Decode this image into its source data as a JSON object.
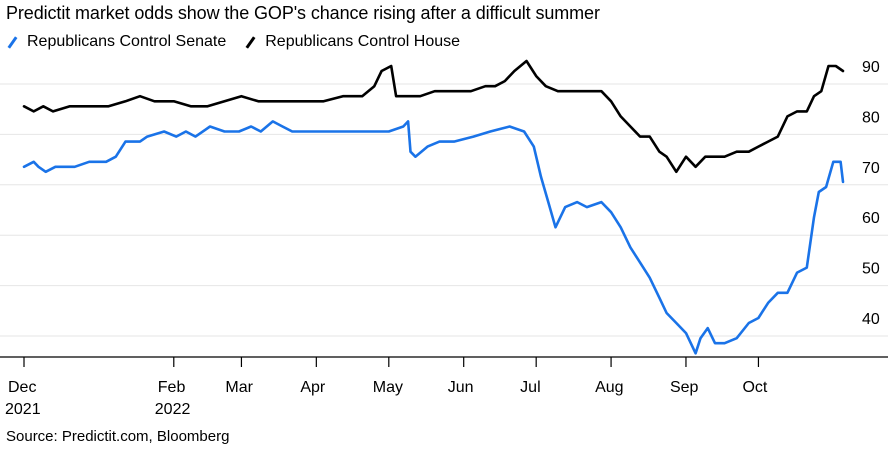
{
  "title": "Predictit market odds show the GOP's chance rising after a difficult summer",
  "source": "Source: Predictit.com, Bloomberg",
  "colors": {
    "senate": "#1a73e8",
    "house": "#000000",
    "grid": "#e6e6e6",
    "axis": "#000000"
  },
  "chart_data": {
    "type": "line",
    "title": "Predictit market odds show the GOP's chance rising after a difficult summer",
    "xlabel": "",
    "ylabel": "",
    "ylim": [
      33,
      92
    ],
    "y_ticks": [
      40,
      50,
      60,
      70,
      80,
      90
    ],
    "y_axis_side": "right",
    "grid": true,
    "legend_position": "top-left",
    "x_ticks": [
      {
        "date": "2021-12-01",
        "label": "Dec",
        "sublabel": "2021"
      },
      {
        "date": "2022-02-01",
        "label": "Feb",
        "sublabel": "2022"
      },
      {
        "date": "2022-03-01",
        "label": "Mar",
        "sublabel": ""
      },
      {
        "date": "2022-04-01",
        "label": "Apr",
        "sublabel": ""
      },
      {
        "date": "2022-05-01",
        "label": "May",
        "sublabel": ""
      },
      {
        "date": "2022-06-01",
        "label": "Jun",
        "sublabel": ""
      },
      {
        "date": "2022-07-01",
        "label": "Jul",
        "sublabel": ""
      },
      {
        "date": "2022-08-01",
        "label": "Aug",
        "sublabel": ""
      },
      {
        "date": "2022-09-01",
        "label": "Sep",
        "sublabel": ""
      },
      {
        "date": "2022-10-01",
        "label": "Oct",
        "sublabel": ""
      }
    ],
    "series": [
      {
        "name": "Republicans Control Senate",
        "color": "#1a73e8",
        "points": [
          [
            "2021-12-01",
            70
          ],
          [
            "2021-12-05",
            71
          ],
          [
            "2021-12-07",
            70
          ],
          [
            "2021-12-10",
            69
          ],
          [
            "2021-12-14",
            70
          ],
          [
            "2021-12-22",
            70
          ],
          [
            "2021-12-28",
            71
          ],
          [
            "2022-01-04",
            71
          ],
          [
            "2022-01-08",
            72
          ],
          [
            "2022-01-12",
            75
          ],
          [
            "2022-01-18",
            75
          ],
          [
            "2022-01-21",
            76
          ],
          [
            "2022-01-28",
            77
          ],
          [
            "2022-02-02",
            76
          ],
          [
            "2022-02-06",
            77
          ],
          [
            "2022-02-10",
            76
          ],
          [
            "2022-02-16",
            78
          ],
          [
            "2022-02-22",
            77
          ],
          [
            "2022-02-28",
            77
          ],
          [
            "2022-03-05",
            78
          ],
          [
            "2022-03-09",
            77
          ],
          [
            "2022-03-14",
            79
          ],
          [
            "2022-03-18",
            78
          ],
          [
            "2022-03-22",
            77
          ],
          [
            "2022-04-01",
            77
          ],
          [
            "2022-04-10",
            77
          ],
          [
            "2022-04-18",
            77
          ],
          [
            "2022-04-25",
            77
          ],
          [
            "2022-05-01",
            77
          ],
          [
            "2022-05-07",
            78
          ],
          [
            "2022-05-09",
            79
          ],
          [
            "2022-05-10",
            73
          ],
          [
            "2022-05-12",
            72
          ],
          [
            "2022-05-17",
            74
          ],
          [
            "2022-05-22",
            75
          ],
          [
            "2022-05-28",
            75
          ],
          [
            "2022-06-05",
            76
          ],
          [
            "2022-06-12",
            77
          ],
          [
            "2022-06-20",
            78
          ],
          [
            "2022-06-26",
            77
          ],
          [
            "2022-06-30",
            74
          ],
          [
            "2022-07-03",
            68
          ],
          [
            "2022-07-06",
            63
          ],
          [
            "2022-07-09",
            58
          ],
          [
            "2022-07-13",
            62
          ],
          [
            "2022-07-18",
            63
          ],
          [
            "2022-07-22",
            62
          ],
          [
            "2022-07-28",
            63
          ],
          [
            "2022-08-01",
            61
          ],
          [
            "2022-08-05",
            58
          ],
          [
            "2022-08-09",
            54
          ],
          [
            "2022-08-13",
            51
          ],
          [
            "2022-08-17",
            48
          ],
          [
            "2022-08-21",
            44
          ],
          [
            "2022-08-24",
            41
          ],
          [
            "2022-08-28",
            39
          ],
          [
            "2022-09-01",
            37
          ],
          [
            "2022-09-03",
            35
          ],
          [
            "2022-09-05",
            33
          ],
          [
            "2022-09-07",
            36
          ],
          [
            "2022-09-10",
            38
          ],
          [
            "2022-09-13",
            35
          ],
          [
            "2022-09-17",
            35
          ],
          [
            "2022-09-22",
            36
          ],
          [
            "2022-09-27",
            39
          ],
          [
            "2022-10-01",
            40
          ],
          [
            "2022-10-05",
            43
          ],
          [
            "2022-10-09",
            45
          ],
          [
            "2022-10-13",
            45
          ],
          [
            "2022-10-17",
            49
          ],
          [
            "2022-10-21",
            50
          ],
          [
            "2022-10-24",
            60
          ],
          [
            "2022-10-26",
            65
          ],
          [
            "2022-10-29",
            66
          ],
          [
            "2022-11-01",
            71
          ],
          [
            "2022-11-04",
            71
          ],
          [
            "2022-11-05",
            67
          ]
        ]
      },
      {
        "name": "Republicans Control House",
        "color": "#000000",
        "points": [
          [
            "2021-12-01",
            82
          ],
          [
            "2021-12-05",
            81
          ],
          [
            "2021-12-09",
            82
          ],
          [
            "2021-12-13",
            81
          ],
          [
            "2021-12-20",
            82
          ],
          [
            "2021-12-28",
            82
          ],
          [
            "2022-01-05",
            82
          ],
          [
            "2022-01-12",
            83
          ],
          [
            "2022-01-18",
            84
          ],
          [
            "2022-01-24",
            83
          ],
          [
            "2022-02-01",
            83
          ],
          [
            "2022-02-08",
            82
          ],
          [
            "2022-02-15",
            82
          ],
          [
            "2022-02-22",
            83
          ],
          [
            "2022-03-01",
            84
          ],
          [
            "2022-03-08",
            83
          ],
          [
            "2022-03-15",
            83
          ],
          [
            "2022-03-25",
            83
          ],
          [
            "2022-04-04",
            83
          ],
          [
            "2022-04-12",
            84
          ],
          [
            "2022-04-20",
            84
          ],
          [
            "2022-04-25",
            86
          ],
          [
            "2022-04-28",
            89
          ],
          [
            "2022-05-02",
            90
          ],
          [
            "2022-05-04",
            84
          ],
          [
            "2022-05-08",
            84
          ],
          [
            "2022-05-14",
            84
          ],
          [
            "2022-05-20",
            85
          ],
          [
            "2022-05-27",
            85
          ],
          [
            "2022-06-04",
            85
          ],
          [
            "2022-06-10",
            86
          ],
          [
            "2022-06-14",
            86
          ],
          [
            "2022-06-18",
            87
          ],
          [
            "2022-06-22",
            89
          ],
          [
            "2022-06-27",
            91
          ],
          [
            "2022-07-01",
            88
          ],
          [
            "2022-07-05",
            86
          ],
          [
            "2022-07-10",
            85
          ],
          [
            "2022-07-16",
            85
          ],
          [
            "2022-07-22",
            85
          ],
          [
            "2022-07-28",
            85
          ],
          [
            "2022-08-01",
            83
          ],
          [
            "2022-08-05",
            80
          ],
          [
            "2022-08-09",
            78
          ],
          [
            "2022-08-13",
            76
          ],
          [
            "2022-08-17",
            76
          ],
          [
            "2022-08-21",
            73
          ],
          [
            "2022-08-24",
            72
          ],
          [
            "2022-08-28",
            69
          ],
          [
            "2022-09-01",
            72
          ],
          [
            "2022-09-05",
            70
          ],
          [
            "2022-09-09",
            72
          ],
          [
            "2022-09-13",
            72
          ],
          [
            "2022-09-17",
            72
          ],
          [
            "2022-09-22",
            73
          ],
          [
            "2022-09-27",
            73
          ],
          [
            "2022-10-01",
            74
          ],
          [
            "2022-10-05",
            75
          ],
          [
            "2022-10-09",
            76
          ],
          [
            "2022-10-13",
            80
          ],
          [
            "2022-10-17",
            81
          ],
          [
            "2022-10-21",
            81
          ],
          [
            "2022-10-24",
            84
          ],
          [
            "2022-10-27",
            85
          ],
          [
            "2022-10-30",
            90
          ],
          [
            "2022-11-02",
            90
          ],
          [
            "2022-11-05",
            89
          ]
        ]
      }
    ]
  }
}
